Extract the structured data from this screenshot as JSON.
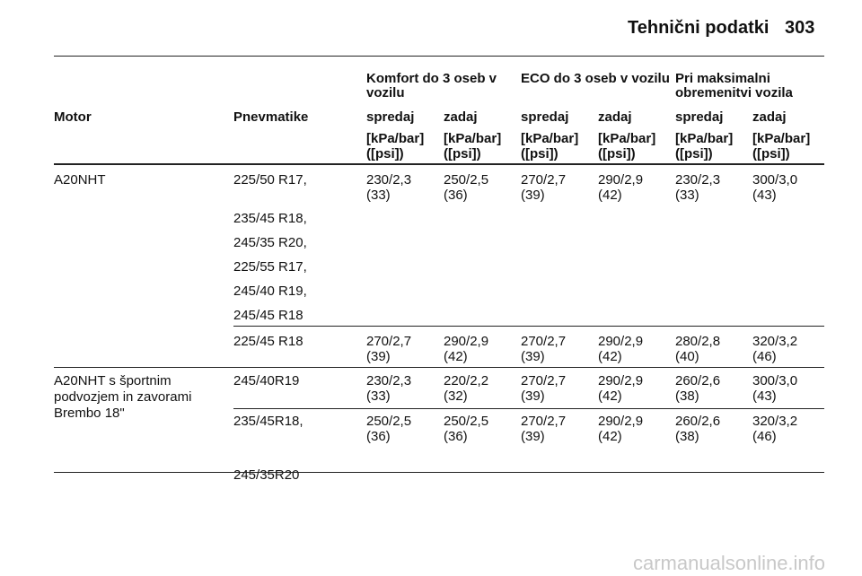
{
  "header": {
    "title": "Tehnični podatki",
    "page": "303"
  },
  "table": {
    "group_headers": [
      "Komfort do 3 oseb v vozilu",
      "ECO do 3 oseb v vozilu",
      "Pri maksimalni obremenitvi vozila"
    ],
    "columns": [
      "Motor",
      "Pnevmatike",
      "spredaj",
      "zadaj",
      "spredaj",
      "zadaj",
      "spredaj",
      "zadaj"
    ],
    "units": [
      [
        "[kPa/bar]",
        "([psi])"
      ],
      [
        "[kPa/bar]",
        "([psi])"
      ],
      [
        "[kPa/bar]",
        "([psi])"
      ],
      [
        "[kPa/bar]",
        "([psi])"
      ],
      [
        "[kPa/bar]",
        "([psi])"
      ],
      [
        "[kPa/bar]",
        "([psi])"
      ]
    ],
    "rows": [
      {
        "motor": [
          "A20NHT"
        ],
        "tires": [
          "225/50 R17,",
          "235/45 R18,",
          "245/35 R20,",
          "225/55 R17,",
          "245/40 R19,",
          "245/45 R18"
        ],
        "values": [
          [
            "230/2,3",
            "(33)"
          ],
          [
            "250/2,5",
            "(36)"
          ],
          [
            "270/2,7",
            "(39)"
          ],
          [
            "290/2,9",
            "(42)"
          ],
          [
            "230/2,3",
            "(33)"
          ],
          [
            "300/3,0",
            "(43)"
          ]
        ]
      },
      {
        "tires": [
          "225/45 R18"
        ],
        "values": [
          [
            "270/2,7",
            "(39)"
          ],
          [
            "290/2,9",
            "(42)"
          ],
          [
            "270/2,7",
            "(39)"
          ],
          [
            "290/2,9",
            "(42)"
          ],
          [
            "280/2,8",
            "(40)"
          ],
          [
            "320/3,2",
            "(46)"
          ]
        ]
      },
      {
        "motor": [
          "A20NHT s športnim",
          "podvozjem in zavorami",
          "Brembo 18\""
        ],
        "tires": [
          "245/40R19"
        ],
        "values": [
          [
            "230/2,3",
            "(33)"
          ],
          [
            "220/2,2",
            "(32)"
          ],
          [
            "270/2,7",
            "(39)"
          ],
          [
            "290/2,9",
            "(42)"
          ],
          [
            "260/2,6",
            "(38)"
          ],
          [
            "300/3,0",
            "(43)"
          ]
        ]
      },
      {
        "tires": [
          "235/45R18,",
          "245/35R20"
        ],
        "values": [
          [
            "250/2,5",
            "(36)"
          ],
          [
            "250/2,5",
            "(36)"
          ],
          [
            "270/2,7",
            "(39)"
          ],
          [
            "290/2,9",
            "(42)"
          ],
          [
            "260/2,6",
            "(38)"
          ],
          [
            "320/3,2",
            "(46)"
          ]
        ]
      }
    ]
  },
  "watermark": "carmanualsonline.info"
}
